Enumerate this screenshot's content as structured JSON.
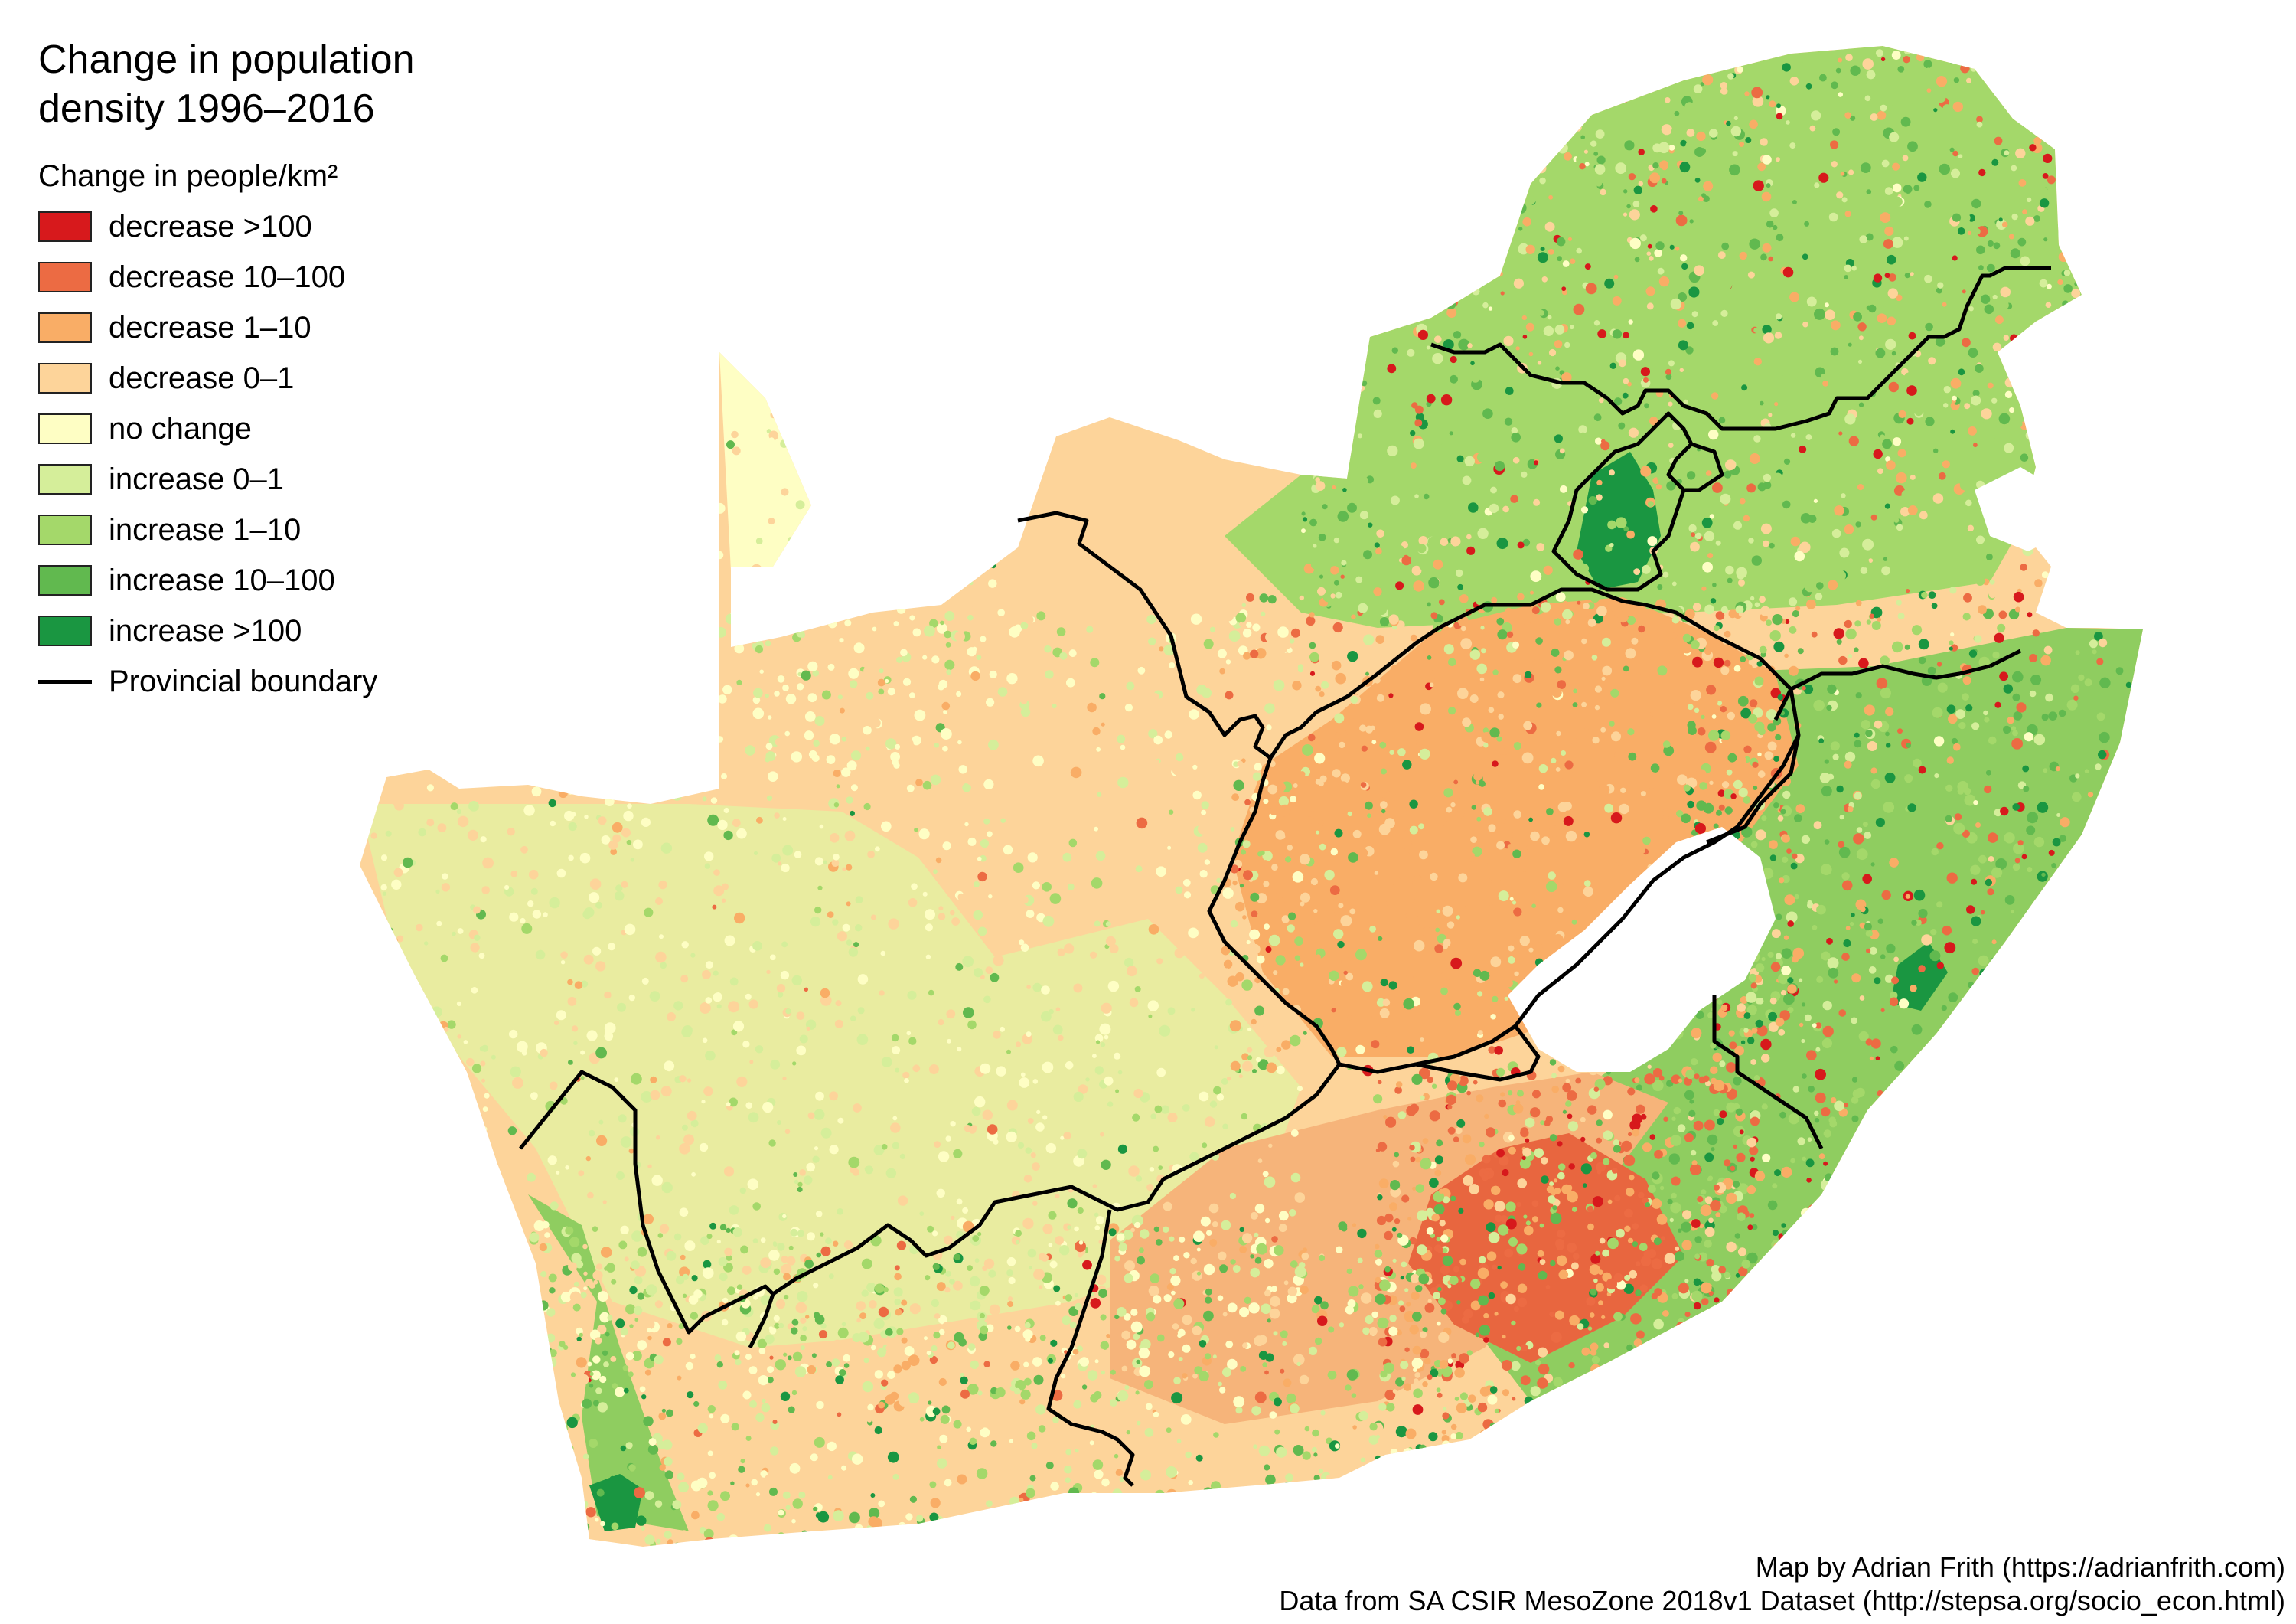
{
  "title_line1": "Change in population",
  "title_line2": "density 1996–2016",
  "legend": {
    "heading": "Change in people/km²",
    "classes": [
      {
        "label": "decrease >100",
        "color": "#d7191c"
      },
      {
        "label": "decrease 10–100",
        "color": "#ec6b43"
      },
      {
        "label": "decrease 1–10",
        "color": "#f9ad66"
      },
      {
        "label": "decrease 0–1",
        "color": "#fdd49a"
      },
      {
        "label": "no change",
        "color": "#fefec4"
      },
      {
        "label": "increase 0–1",
        "color": "#d5ee9a"
      },
      {
        "label": "increase 1–10",
        "color": "#a4d86a"
      },
      {
        "label": "increase 10–100",
        "color": "#61b94f"
      },
      {
        "label": "increase >100",
        "color": "#1a9641"
      }
    ],
    "boundary_label": "Provincial boundary"
  },
  "credits": {
    "line1": "Map by Adrian Frith (https://adrianfrith.com)",
    "line2": "Data from SA CSIR MesoZone 2018v1 Dataset (http://stepsa.org/socio_econ.html)"
  }
}
